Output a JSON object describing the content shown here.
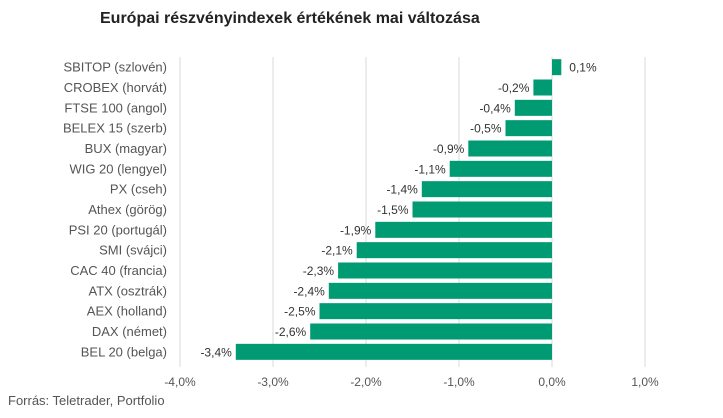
{
  "title": "Európai részvényindexek értékének mai változása",
  "source": "Forrás: Teletrader, Portfolio",
  "colors": {
    "bar": "#009a73",
    "grid": "#d9d9d9",
    "text": "#555555"
  },
  "chart_data": {
    "type": "bar",
    "orientation": "horizontal",
    "title": "Európai részvényindexek értékének mai változása",
    "categories": [
      "SBITOP (szlovén)",
      "CROBEX (horvát)",
      "FTSE 100 (angol)",
      "BELEX 15 (szerb)",
      "BUX (magyar)",
      "WIG 20 (lengyel)",
      "PX (cseh)",
      "Athex (görög)",
      "PSI 20 (portugál)",
      "SMI (svájci)",
      "CAC 40 (francia)",
      "ATX (osztrák)",
      "AEX (holland)",
      "DAX (német)",
      "BEL 20 (belga)"
    ],
    "values": [
      0.1,
      -0.2,
      -0.4,
      -0.5,
      -0.9,
      -1.1,
      -1.4,
      -1.5,
      -1.9,
      -2.1,
      -2.3,
      -2.4,
      -2.5,
      -2.6,
      -3.4
    ],
    "value_labels": [
      "0,1%",
      "-0,2%",
      "-0,4%",
      "-0,5%",
      "-0,9%",
      "-1,1%",
      "-1,4%",
      "-1,5%",
      "-1,9%",
      "-2,1%",
      "-2,3%",
      "-2,4%",
      "-2,5%",
      "-2,6%",
      "-3,4%"
    ],
    "xlim": [
      -4.0,
      1.0
    ],
    "xticks": [
      -4.0,
      -3.0,
      -2.0,
      -1.0,
      0.0,
      1.0
    ],
    "xtick_labels": [
      "-4,0%",
      "-3,0%",
      "-2,0%",
      "-1,0%",
      "0,0%",
      "1,0%"
    ],
    "xlabel": "",
    "ylabel": "",
    "grid": "vertical",
    "legend": "none"
  }
}
